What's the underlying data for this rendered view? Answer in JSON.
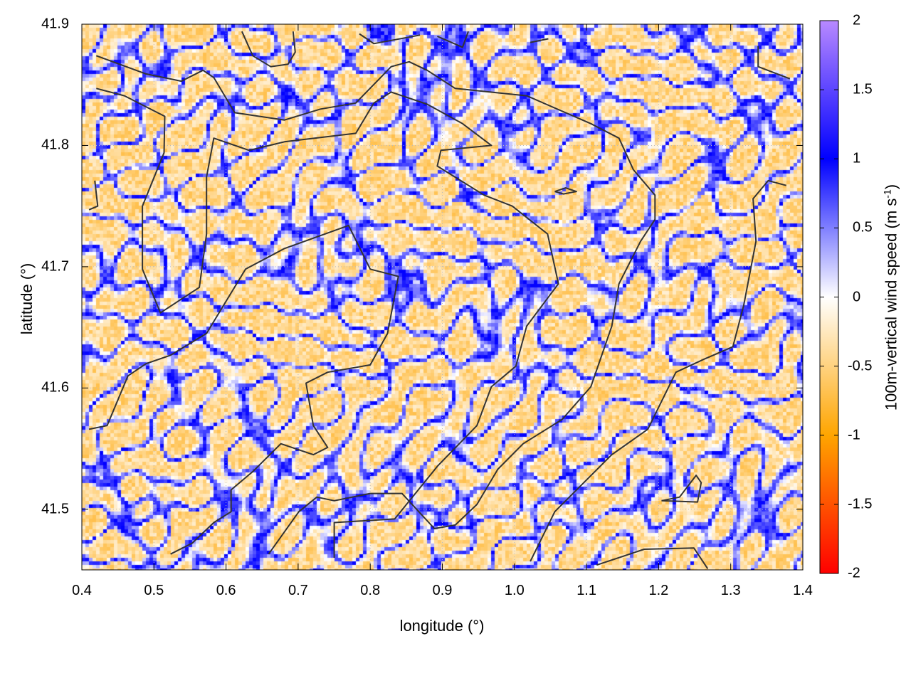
{
  "chart_data": {
    "type": "heatmap",
    "xlabel": "longitude (°)",
    "ylabel": "latitude (°)",
    "colorbar_label": "100m-vertical wind speed (m s",
    "colorbar_label_sup": "-1",
    "colorbar_label_close": ")",
    "xlim": [
      0.4,
      1.4
    ],
    "ylim": [
      41.45,
      41.9
    ],
    "clim": [
      -2,
      2
    ],
    "xticks": [
      "0.4",
      "0.5",
      "0.6",
      "0.7",
      "0.8",
      "0.9",
      "1.0",
      "1.1",
      "1.2",
      "1.3",
      "1.4"
    ],
    "yticks": [
      "41.5",
      "41.6",
      "41.7",
      "41.8",
      "41.9"
    ],
    "cticks": [
      "-2",
      "-1.5",
      "-1",
      "-0.5",
      "0",
      "0.5",
      "1",
      "1.5",
      "2"
    ],
    "grid": true,
    "colormap": [
      {
        "value": -2,
        "color": "#ff0000"
      },
      {
        "value": -1,
        "color": "#ffa500"
      },
      {
        "value": 0,
        "color": "#ffffff"
      },
      {
        "value": 1,
        "color": "#0000ff"
      },
      {
        "value": 2,
        "color": "#b889ff"
      }
    ],
    "contour_color": "#333333",
    "contours": [
      [
        [
          0.42,
          41.874
        ],
        [
          0.489,
          41.859
        ],
        [
          0.538,
          41.853
        ],
        [
          0.568,
          41.862
        ],
        [
          0.583,
          41.856
        ],
        [
          0.612,
          41.827
        ],
        [
          0.681,
          41.821
        ],
        [
          0.731,
          41.83
        ],
        [
          0.78,
          41.835
        ],
        [
          0.829,
          41.865
        ],
        [
          0.854,
          41.869
        ],
        [
          0.879,
          41.862
        ],
        [
          0.918,
          41.847
        ],
        [
          1.017,
          41.841
        ],
        [
          1.106,
          41.818
        ],
        [
          1.145,
          41.806
        ],
        [
          1.165,
          41.78
        ],
        [
          1.195,
          41.759
        ],
        [
          1.195,
          41.739
        ],
        [
          1.175,
          41.721
        ],
        [
          1.145,
          41.686
        ],
        [
          1.135,
          41.651
        ],
        [
          1.106,
          41.601
        ],
        [
          1.066,
          41.574
        ],
        [
          1.012,
          41.554
        ],
        [
          0.977,
          41.533
        ],
        [
          0.948,
          41.504
        ],
        [
          0.918,
          41.487
        ],
        [
          0.889,
          41.484
        ],
        [
          0.844,
          41.513
        ],
        [
          0.8,
          41.513
        ],
        [
          0.75,
          41.507
        ],
        [
          0.726,
          41.51
        ],
        [
          0.701,
          41.498
        ],
        [
          0.659,
          41.463
        ]
      ],
      [
        [
          0.42,
          41.847
        ],
        [
          0.459,
          41.841
        ],
        [
          0.515,
          41.824
        ],
        [
          0.514,
          41.794
        ],
        [
          0.484,
          41.75
        ],
        [
          0.484,
          41.698
        ],
        [
          0.509,
          41.662
        ],
        [
          0.563,
          41.683
        ],
        [
          0.573,
          41.727
        ],
        [
          0.573,
          41.774
        ],
        [
          0.583,
          41.806
        ],
        [
          0.632,
          41.796
        ],
        [
          0.681,
          41.803
        ],
        [
          0.78,
          41.81
        ],
        [
          0.805,
          41.835
        ],
        [
          0.829,
          41.844
        ],
        [
          0.879,
          41.834
        ],
        [
          0.928,
          41.818
        ],
        [
          0.968,
          41.8
        ],
        [
          0.898,
          41.796
        ],
        [
          0.893,
          41.783
        ],
        [
          0.958,
          41.759
        ],
        [
          0.997,
          41.75
        ],
        [
          1.046,
          41.727
        ],
        [
          1.061,
          41.686
        ],
        [
          1.017,
          41.651
        ],
        [
          1.002,
          41.618
        ],
        [
          0.968,
          41.601
        ],
        [
          0.948,
          41.569
        ],
        [
          0.894,
          41.536
        ],
        [
          0.834,
          41.492
        ],
        [
          0.75,
          41.489
        ],
        [
          0.75,
          41.46
        ]
      ],
      [
        [
          0.41,
          41.566
        ],
        [
          0.435,
          41.569
        ],
        [
          0.464,
          41.61
        ],
        [
          0.489,
          41.62
        ],
        [
          0.523,
          41.627
        ],
        [
          0.573,
          41.645
        ],
        [
          0.627,
          41.698
        ],
        [
          0.681,
          41.715
        ],
        [
          0.77,
          41.734
        ],
        [
          0.8,
          41.698
        ],
        [
          0.839,
          41.692
        ],
        [
          0.824,
          41.645
        ],
        [
          0.8,
          41.619
        ],
        [
          0.741,
          41.613
        ],
        [
          0.711,
          41.604
        ],
        [
          0.721,
          41.569
        ],
        [
          0.741,
          41.551
        ],
        [
          0.721,
          41.545
        ],
        [
          0.676,
          41.554
        ],
        [
          0.637,
          41.531
        ],
        [
          0.607,
          41.516
        ],
        [
          0.607,
          41.498
        ],
        [
          0.583,
          41.489
        ],
        [
          0.553,
          41.472
        ],
        [
          0.523,
          41.463
        ]
      ],
      [
        [
          1.022,
          41.457
        ],
        [
          1.056,
          41.498
        ],
        [
          1.135,
          41.545
        ],
        [
          1.185,
          41.566
        ],
        [
          1.224,
          41.613
        ],
        [
          1.264,
          41.624
        ],
        [
          1.303,
          41.634
        ],
        [
          1.318,
          41.668
        ],
        [
          1.335,
          41.721
        ],
        [
          1.331,
          41.756
        ],
        [
          1.352,
          41.771
        ],
        [
          1.377,
          41.767
        ]
      ],
      [
        [
          1.114,
          41.454
        ],
        [
          1.18,
          41.467
        ],
        [
          1.249,
          41.468
        ],
        [
          1.268,
          41.451
        ]
      ],
      [
        [
          1.204,
          41.507
        ],
        [
          1.229,
          41.51
        ],
        [
          1.252,
          41.528
        ],
        [
          1.259,
          41.522
        ],
        [
          1.254,
          41.506
        ],
        [
          1.204,
          41.507
        ]
      ],
      [
        [
          1.056,
          41.762
        ],
        [
          1.071,
          41.765
        ],
        [
          1.086,
          41.762
        ],
        [
          1.068,
          41.76
        ],
        [
          1.056,
          41.762
        ]
      ],
      [
        [
          0.622,
          41.894
        ],
        [
          0.637,
          41.874
        ],
        [
          0.662,
          41.865
        ],
        [
          0.686,
          41.867
        ],
        [
          0.696,
          41.877
        ],
        [
          0.693,
          41.894
        ]
      ],
      [
        [
          0.785,
          41.892
        ],
        [
          0.805,
          41.884
        ],
        [
          0.869,
          41.891
        ]
      ],
      [
        [
          0.893,
          41.89
        ],
        [
          0.928,
          41.881
        ],
        [
          0.936,
          41.894
        ]
      ],
      [
        [
          1.022,
          41.885
        ],
        [
          1.047,
          41.888
        ]
      ],
      [
        [
          1.338,
          41.882
        ],
        [
          1.338,
          41.865
        ],
        [
          1.382,
          41.855
        ]
      ],
      [
        [
          0.418,
          41.771
        ],
        [
          0.422,
          41.75
        ],
        [
          0.41,
          41.747
        ]
      ]
    ]
  }
}
